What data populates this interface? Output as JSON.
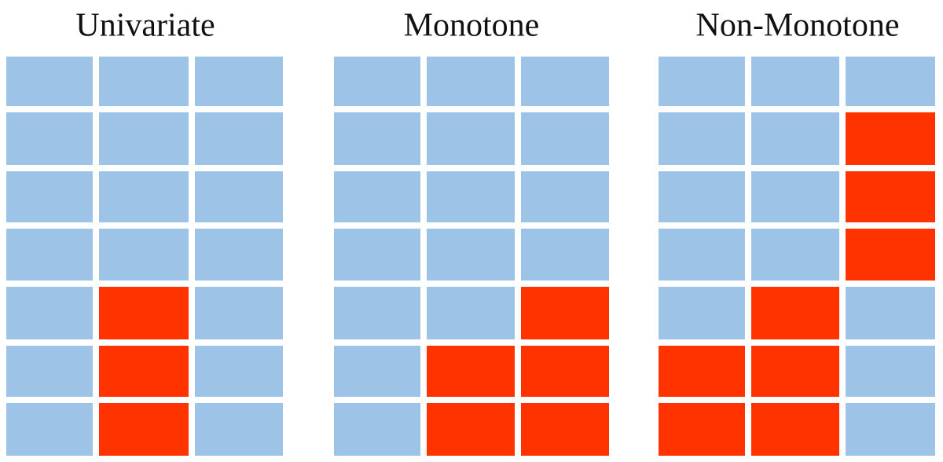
{
  "panels": [
    {
      "title": "Univariate"
    },
    {
      "title": "Monotone"
    },
    {
      "title": "Non-Monotone"
    }
  ]
}
